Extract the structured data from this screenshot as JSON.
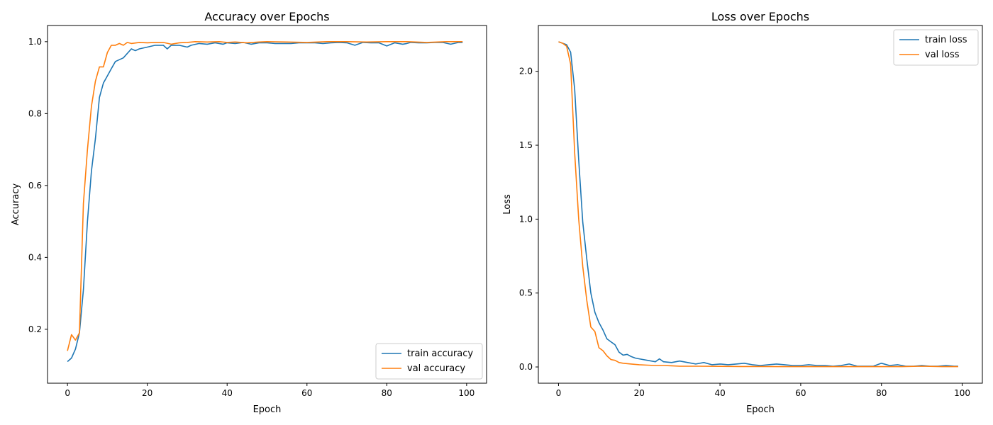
{
  "chart_data": [
    {
      "type": "line",
      "title": "Accuracy over Epochs",
      "xlabel": "Epoch",
      "ylabel": "Accuracy",
      "xlim": [
        -5,
        105
      ],
      "ylim": [
        0.05,
        1.045
      ],
      "xticks": [
        0,
        20,
        40,
        60,
        80,
        100
      ],
      "xtick_labels": [
        "0",
        "20",
        "40",
        "60",
        "80",
        "100"
      ],
      "yticks": [
        0.2,
        0.4,
        0.6,
        0.8,
        1.0
      ],
      "ytick_labels": [
        "0.2",
        "0.4",
        "0.6",
        "0.8",
        "1.0"
      ],
      "grid": false,
      "legend": "lower right",
      "series": [
        {
          "name": "train accuracy",
          "color": "#1f77b4",
          "x": [
            0,
            1,
            2,
            3,
            4,
            5,
            6,
            7,
            8,
            9,
            10,
            11,
            12,
            14,
            16,
            17,
            18,
            20,
            22,
            24,
            25,
            26,
            28,
            30,
            31,
            33,
            35,
            37,
            39,
            40,
            42,
            44,
            46,
            48,
            50,
            52,
            54,
            56,
            58,
            60,
            62,
            64,
            66,
            68,
            70,
            72,
            74,
            76,
            78,
            80,
            82,
            84,
            85,
            86,
            88,
            90,
            92,
            94,
            96,
            98,
            99
          ],
          "y": [
            0.11,
            0.12,
            0.145,
            0.19,
            0.31,
            0.5,
            0.64,
            0.73,
            0.845,
            0.885,
            0.905,
            0.925,
            0.945,
            0.955,
            0.98,
            0.975,
            0.98,
            0.985,
            0.99,
            0.99,
            0.98,
            0.99,
            0.99,
            0.985,
            0.99,
            0.995,
            0.993,
            0.997,
            0.993,
            0.997,
            0.995,
            0.998,
            0.993,
            0.997,
            0.997,
            0.995,
            0.995,
            0.995,
            0.997,
            0.997,
            0.997,
            0.995,
            0.997,
            0.998,
            0.997,
            0.99,
            0.998,
            0.997,
            0.997,
            0.988,
            0.997,
            0.993,
            0.995,
            0.998,
            0.997,
            0.997,
            0.998,
            0.998,
            0.993,
            0.998,
            0.998
          ]
        },
        {
          "name": "val accuracy",
          "color": "#ff7f0e",
          "x": [
            0,
            1,
            2,
            3,
            4,
            5,
            6,
            7,
            8,
            9,
            10,
            11,
            12,
            13,
            14,
            15,
            16,
            18,
            20,
            22,
            24,
            26,
            28,
            30,
            32,
            35,
            38,
            40,
            42,
            45,
            48,
            50,
            55,
            60,
            65,
            70,
            75,
            80,
            85,
            90,
            95,
            99
          ],
          "y": [
            0.14,
            0.185,
            0.17,
            0.19,
            0.55,
            0.7,
            0.82,
            0.89,
            0.93,
            0.93,
            0.97,
            0.99,
            0.99,
            0.995,
            0.99,
            0.998,
            0.995,
            0.998,
            0.997,
            0.998,
            0.998,
            0.993,
            0.997,
            0.998,
            1.0,
            0.999,
            1.0,
            0.998,
            0.999,
            0.997,
            0.999,
            1.0,
            0.999,
            0.998,
            1.0,
            1.0,
            0.999,
            1.0,
            1.0,
            0.998,
            1.0,
            1.0
          ]
        }
      ]
    },
    {
      "type": "line",
      "title": "Loss over Epochs",
      "xlabel": "Epoch",
      "ylabel": "Loss",
      "xlim": [
        -5,
        105
      ],
      "ylim": [
        -0.11,
        2.31
      ],
      "xticks": [
        0,
        20,
        40,
        60,
        80,
        100
      ],
      "xtick_labels": [
        "0",
        "20",
        "40",
        "60",
        "80",
        "100"
      ],
      "yticks": [
        0.0,
        0.5,
        1.0,
        1.5,
        2.0
      ],
      "ytick_labels": [
        "0.0",
        "0.5",
        "1.0",
        "1.5",
        "2.0"
      ],
      "grid": false,
      "legend": "upper right",
      "series": [
        {
          "name": "train loss",
          "color": "#1f77b4",
          "x": [
            0,
            1,
            2,
            3,
            4,
            5,
            6,
            7,
            8,
            9,
            10,
            11,
            12,
            13,
            14,
            15,
            16,
            17,
            18,
            19,
            20,
            22,
            24,
            25,
            26,
            28,
            30,
            32,
            34,
            36,
            38,
            40,
            42,
            44,
            46,
            48,
            50,
            52,
            54,
            56,
            58,
            60,
            62,
            64,
            66,
            68,
            70,
            72,
            74,
            76,
            78,
            80,
            82,
            84,
            86,
            88,
            90,
            92,
            94,
            96,
            98,
            99
          ],
          "y": [
            2.2,
            2.19,
            2.18,
            2.13,
            1.88,
            1.4,
            0.98,
            0.73,
            0.5,
            0.37,
            0.3,
            0.25,
            0.19,
            0.17,
            0.15,
            0.1,
            0.08,
            0.085,
            0.07,
            0.06,
            0.055,
            0.045,
            0.035,
            0.055,
            0.035,
            0.03,
            0.04,
            0.03,
            0.02,
            0.03,
            0.015,
            0.02,
            0.015,
            0.02,
            0.025,
            0.015,
            0.01,
            0.015,
            0.02,
            0.015,
            0.01,
            0.01,
            0.015,
            0.01,
            0.01,
            0.005,
            0.01,
            0.02,
            0.005,
            0.005,
            0.005,
            0.025,
            0.01,
            0.015,
            0.005,
            0.005,
            0.01,
            0.005,
            0.005,
            0.01,
            0.005,
            0.005
          ]
        },
        {
          "name": "val loss",
          "color": "#ff7f0e",
          "x": [
            0,
            1,
            2,
            3,
            4,
            5,
            6,
            7,
            8,
            9,
            10,
            11,
            12,
            13,
            14,
            15,
            16,
            18,
            20,
            22,
            24,
            26,
            28,
            30,
            35,
            40,
            45,
            50,
            55,
            60,
            65,
            70,
            75,
            80,
            85,
            90,
            95,
            99
          ],
          "y": [
            2.2,
            2.19,
            2.17,
            2.05,
            1.45,
            1.0,
            0.68,
            0.45,
            0.27,
            0.24,
            0.13,
            0.11,
            0.075,
            0.05,
            0.045,
            0.03,
            0.025,
            0.02,
            0.015,
            0.012,
            0.01,
            0.01,
            0.008,
            0.005,
            0.005,
            0.004,
            0.003,
            0.003,
            0.002,
            0.002,
            0.002,
            0.002,
            0.002,
            0.002,
            0.002,
            0.005,
            0.002,
            0.002
          ]
        }
      ]
    }
  ]
}
